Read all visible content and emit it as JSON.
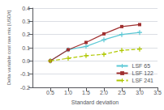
{
  "chart_data": {
    "type": "line",
    "xlabel": "Standard deviation",
    "ylabel": "Delta variable cost raw mix [USD/t]",
    "x": [
      0.5,
      1.0,
      1.5,
      2.0,
      2.5,
      3.0
    ],
    "series": [
      {
        "name": "LSF 65",
        "color": "#5bc8d5",
        "marker": "plus",
        "line_style": "solid",
        "values": [
          0.0,
          0.085,
          0.11,
          0.16,
          0.2,
          0.215
        ]
      },
      {
        "name": "LSF 122",
        "color": "#a03030",
        "marker": "square",
        "line_style": "solid",
        "values": [
          0.0,
          0.085,
          0.14,
          0.205,
          0.26,
          0.275
        ]
      },
      {
        "name": "LSF 241",
        "color": "#b0c800",
        "marker": "plus",
        "line_style": "dashed",
        "values": [
          0.0,
          0.02,
          0.04,
          0.05,
          0.08,
          0.09
        ]
      }
    ],
    "xlim": [
      0.0,
      3.5
    ],
    "ylim": [
      -0.2,
      0.4
    ],
    "xticks": [
      0.5,
      {
        "value": 1.0,
        "label": "1.0"
      },
      1.5,
      {
        "value": 2.0,
        "label": "2.0"
      },
      2.5,
      {
        "value": 3.0,
        "label": "3.0"
      },
      3.5
    ],
    "yticks": [
      -0.2,
      -0.1,
      {
        "value": 0.0,
        "label": "0.0"
      },
      0.1,
      0.2,
      0.3,
      0.4
    ],
    "grid": true,
    "legend": "lower right"
  }
}
